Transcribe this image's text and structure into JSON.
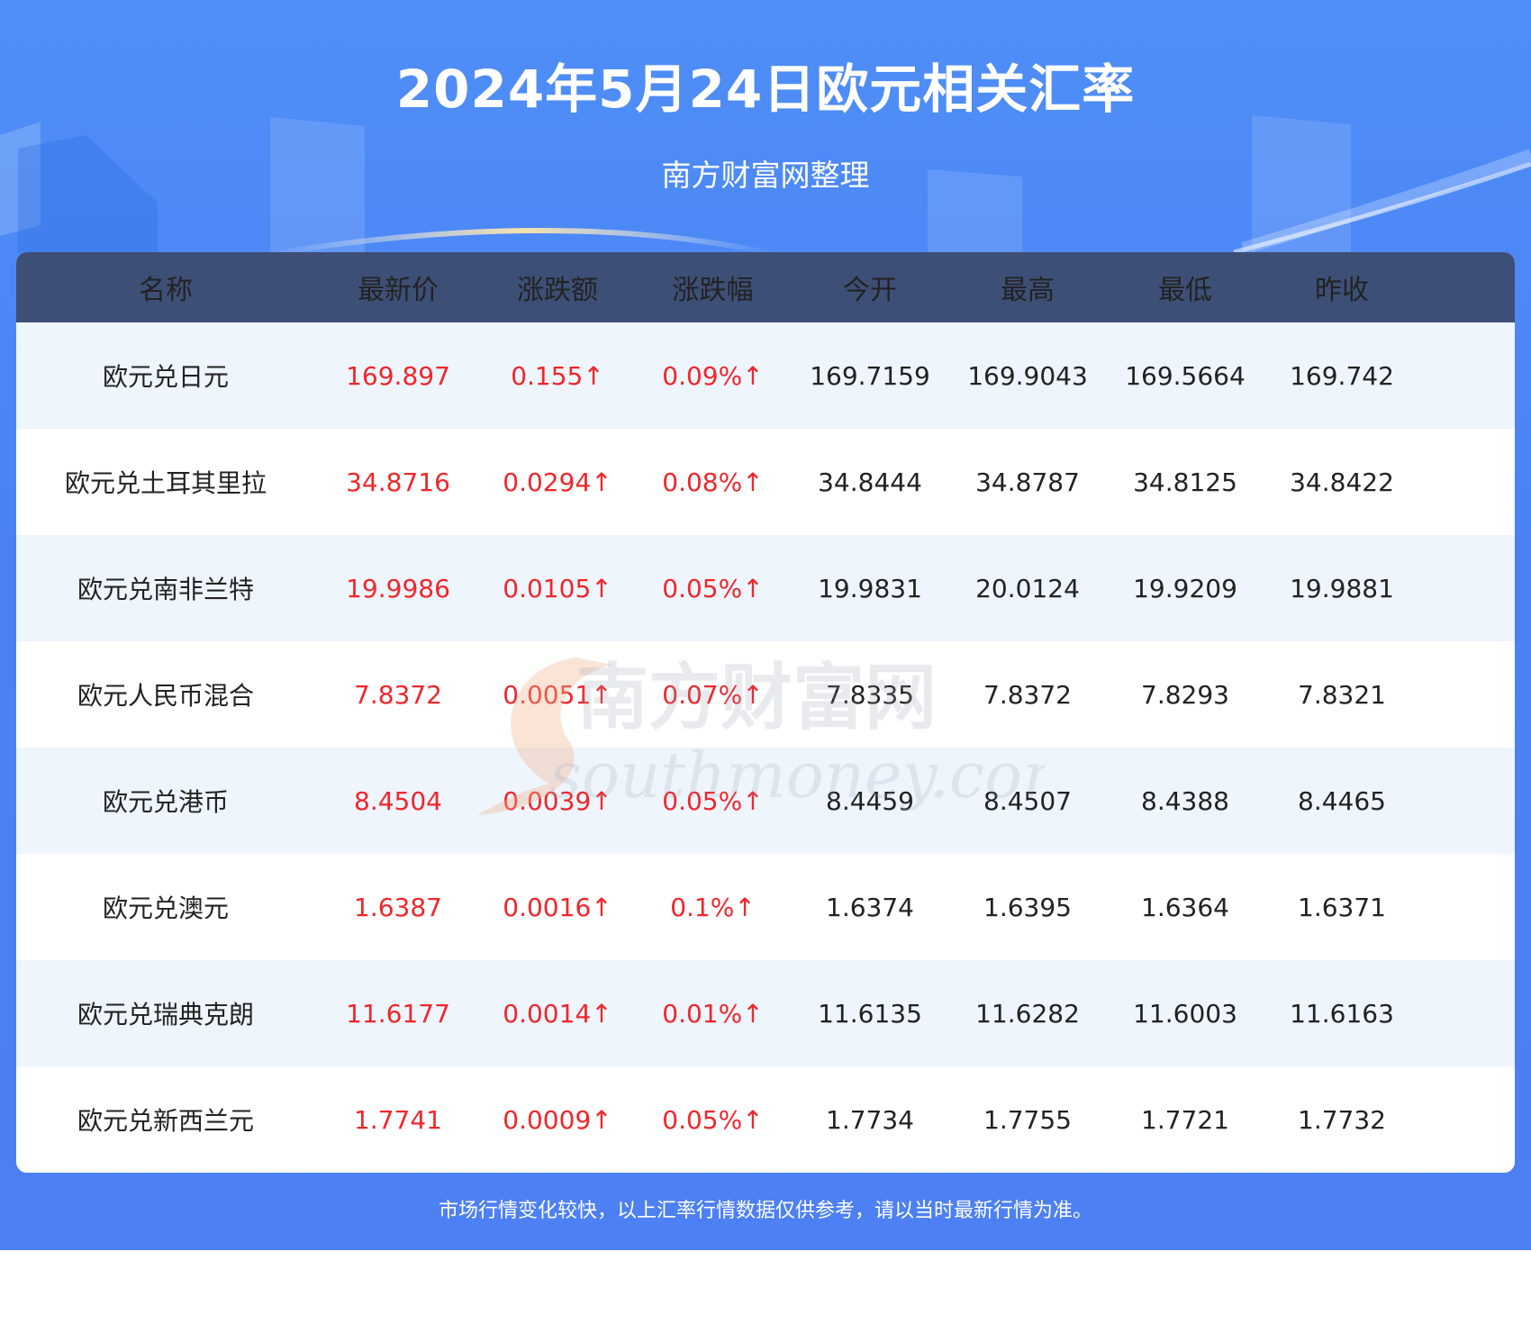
{
  "title": "2024年5月24日欧元相关汇率",
  "subtitle": "南方财富网整理",
  "colors": {
    "header_bg": "#3d4f76",
    "rise": "#f0262b",
    "banner": "#4a82f4",
    "row_alt": "#eef5fd"
  },
  "table": {
    "headers": [
      "名称",
      "最新价",
      "涨跌额",
      "涨跌幅",
      "今开",
      "最高",
      "最低",
      "昨收"
    ],
    "rows": [
      [
        "欧元兑日元",
        "169.897",
        "0.155↑",
        "0.09%↑",
        "169.7159",
        "169.9043",
        "169.5664",
        "169.742"
      ],
      [
        "欧元兑土耳其里拉",
        "34.8716",
        "0.0294↑",
        "0.08%↑",
        "34.8444",
        "34.8787",
        "34.8125",
        "34.8422"
      ],
      [
        "欧元兑南非兰特",
        "19.9986",
        "0.0105↑",
        "0.05%↑",
        "19.9831",
        "20.0124",
        "19.9209",
        "19.9881"
      ],
      [
        "欧元人民币混合",
        "7.8372",
        "0.0051↑",
        "0.07%↑",
        "7.8335",
        "7.8372",
        "7.8293",
        "7.8321"
      ],
      [
        "欧元兑港币",
        "8.4504",
        "0.0039↑",
        "0.05%↑",
        "8.4459",
        "8.4507",
        "8.4388",
        "8.4465"
      ],
      [
        "欧元兑澳元",
        "1.6387",
        "0.0016↑",
        "0.1%↑",
        "1.6374",
        "1.6395",
        "1.6364",
        "1.6371"
      ],
      [
        "欧元兑瑞典克朗",
        "11.6177",
        "0.0014↑",
        "0.01%↑",
        "11.6135",
        "11.6282",
        "11.6003",
        "11.6163"
      ],
      [
        "欧元兑新西兰元",
        "1.7741",
        "0.0009↑",
        "0.05%↑",
        "1.7734",
        "1.7755",
        "1.7721",
        "1.7732"
      ]
    ]
  },
  "watermark": {
    "cn": "南方财富网",
    "en": "southmoney.com"
  },
  "footer": "市场行情变化较快，以上汇率行情数据仅供参考，请以当时最新行情为准。"
}
